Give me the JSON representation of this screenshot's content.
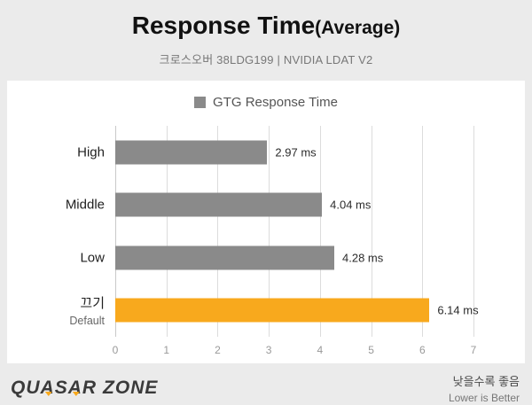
{
  "header": {
    "title": "Response Time",
    "title_suffix": "(Average)",
    "subtitle": "크로스오버 38LDG199  |  NVIDIA LDAT V2"
  },
  "legend": {
    "label": "GTG Response Time"
  },
  "chart_data": {
    "type": "bar",
    "orientation": "horizontal",
    "title": "Response Time(Average)",
    "subtitle": "크로스오버 38LDG199 | NVIDIA LDAT V2",
    "series_name": "GTG Response Time",
    "categories": [
      "High",
      "Middle",
      "Low",
      "끄기"
    ],
    "category_sublabels": [
      "",
      "",
      "",
      "Default"
    ],
    "values": [
      2.97,
      4.04,
      4.28,
      6.14
    ],
    "value_labels": [
      "2.97 ms",
      "4.04 ms",
      "4.28 ms",
      "6.14 ms"
    ],
    "unit": "ms",
    "xlim": [
      0,
      7
    ],
    "x_ticks": [
      0,
      1,
      2,
      3,
      4,
      5,
      6,
      7
    ],
    "grid": true,
    "legend_position": "top",
    "bar_colors": [
      "#8a8a8a",
      "#8a8a8a",
      "#8a8a8a",
      "#f8a91d"
    ],
    "note": "Lower is Better"
  },
  "footer": {
    "logo_text": "QUASAR ZONE",
    "note_kr": "낮을수록 좋음",
    "note_en": "Lower is Better"
  },
  "colors": {
    "background": "#ebebeb",
    "panel": "#ffffff",
    "bar_gray": "#8a8a8a",
    "bar_orange": "#f8a91d",
    "gridline": "#dcdcdc"
  }
}
